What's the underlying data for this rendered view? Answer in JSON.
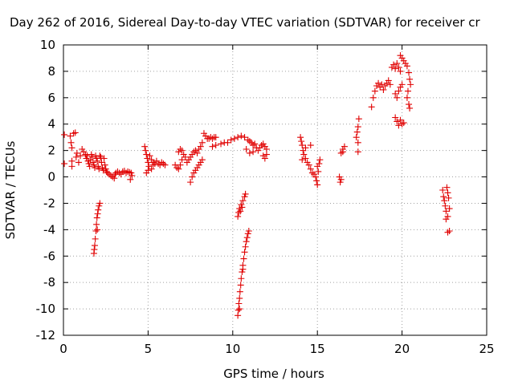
{
  "chart_data": {
    "type": "scatter",
    "title": "Day 262 of 2016, Sidereal Day-to-day VTEC variation (SDTVAR) for receiver cr",
    "xlabel": "GPS time / hours",
    "ylabel": "SDTVAR / TECUs",
    "xlim": [
      0,
      25
    ],
    "ylim": [
      -12,
      10
    ],
    "xticks": [
      "0",
      "5",
      "10",
      "15",
      "20",
      "25"
    ],
    "yticks": [
      "-12",
      "-10",
      "-8",
      "-6",
      "-4",
      "-2",
      "0",
      "2",
      "4",
      "6",
      "8",
      "10"
    ],
    "grid": true,
    "marker": "plus",
    "color": "#e00000",
    "series": [
      {
        "values": [
          [
            0.05,
            3.2
          ],
          [
            0.05,
            1.0
          ],
          [
            0.4,
            3.1
          ],
          [
            0.45,
            2.6
          ],
          [
            0.5,
            2.2
          ],
          [
            0.5,
            1.2
          ],
          [
            0.5,
            0.8
          ],
          [
            0.6,
            3.3
          ],
          [
            0.7,
            3.35
          ],
          [
            0.75,
            1.5
          ],
          [
            0.8,
            1.8
          ],
          [
            0.9,
            1.1
          ],
          [
            1.0,
            1.6
          ],
          [
            1.1,
            2.1
          ],
          [
            1.2,
            1.9
          ],
          [
            1.3,
            1.7
          ],
          [
            1.35,
            1.4
          ],
          [
            1.4,
            1.6
          ],
          [
            1.45,
            1.2
          ],
          [
            1.5,
            1.0
          ],
          [
            1.55,
            0.8
          ],
          [
            1.6,
            1.3
          ],
          [
            1.65,
            1.7
          ],
          [
            1.7,
            1.5
          ],
          [
            1.75,
            1.1
          ],
          [
            1.8,
            0.9
          ],
          [
            1.85,
            0.7
          ],
          [
            1.9,
            1.6
          ],
          [
            1.95,
            1.4
          ],
          [
            2.0,
            1.2
          ],
          [
            2.05,
            0.8
          ],
          [
            2.1,
            0.6
          ],
          [
            2.15,
            1.6
          ],
          [
            2.2,
            1.5
          ],
          [
            2.25,
            1.1
          ],
          [
            2.3,
            0.7
          ],
          [
            2.35,
            0.5
          ],
          [
            2.4,
            1.4
          ],
          [
            2.45,
            0.9
          ],
          [
            2.5,
            0.6
          ],
          [
            2.55,
            0.4
          ],
          [
            2.6,
            0.3
          ],
          [
            2.7,
            0.2
          ],
          [
            2.8,
            0.1
          ],
          [
            2.9,
            0.0
          ],
          [
            3.0,
            -0.1
          ],
          [
            3.05,
            0.2
          ],
          [
            3.1,
            0.3
          ],
          [
            3.2,
            0.4
          ],
          [
            3.3,
            0.3
          ],
          [
            3.4,
            0.2
          ],
          [
            3.5,
            0.4
          ],
          [
            3.6,
            0.45
          ],
          [
            3.7,
            0.3
          ],
          [
            3.8,
            0.4
          ],
          [
            3.9,
            0.35
          ],
          [
            4.0,
            0.3
          ],
          [
            3.95,
            -0.2
          ],
          [
            4.05,
            0.1
          ],
          [
            1.8,
            -5.8
          ],
          [
            1.82,
            -5.5
          ],
          [
            1.85,
            -5.2
          ],
          [
            1.88,
            -4.7
          ],
          [
            1.92,
            -4.1
          ],
          [
            1.95,
            -3.6
          ],
          [
            1.98,
            -3.1
          ],
          [
            2.02,
            -2.8
          ],
          [
            2.05,
            -2.5
          ],
          [
            2.1,
            -2.2
          ],
          [
            2.15,
            -2.0
          ],
          [
            2.0,
            -4.0
          ],
          [
            4.8,
            2.3
          ],
          [
            4.85,
            2.0
          ],
          [
            4.9,
            1.7
          ],
          [
            4.95,
            1.4
          ],
          [
            5.0,
            1.1
          ],
          [
            5.05,
            0.8
          ],
          [
            5.0,
            0.5
          ],
          [
            4.9,
            0.3
          ],
          [
            5.1,
            1.6
          ],
          [
            5.2,
            1.3
          ],
          [
            5.3,
            1.1
          ],
          [
            5.4,
            1.0
          ],
          [
            5.5,
            1.2
          ],
          [
            5.6,
            1.0
          ],
          [
            5.7,
            0.9
          ],
          [
            5.8,
            1.1
          ],
          [
            5.9,
            1.0
          ],
          [
            6.0,
            0.9
          ],
          [
            5.2,
            0.6
          ],
          [
            5.3,
            0.9
          ],
          [
            6.6,
            0.9
          ],
          [
            6.7,
            0.7
          ],
          [
            6.8,
            0.6
          ],
          [
            6.9,
            0.9
          ],
          [
            7.0,
            1.3
          ],
          [
            7.1,
            1.7
          ],
          [
            7.2,
            1.5
          ],
          [
            7.3,
            1.1
          ],
          [
            7.4,
            1.3
          ],
          [
            7.5,
            1.5
          ],
          [
            7.6,
            1.7
          ],
          [
            7.7,
            1.9
          ],
          [
            7.8,
            2.0
          ],
          [
            7.9,
            1.8
          ],
          [
            8.0,
            2.1
          ],
          [
            8.1,
            2.3
          ],
          [
            8.2,
            2.6
          ],
          [
            6.8,
            1.9
          ],
          [
            6.9,
            2.1
          ],
          [
            7.0,
            2.0
          ],
          [
            7.6,
            0.0
          ],
          [
            7.7,
            0.3
          ],
          [
            7.8,
            0.5
          ],
          [
            7.9,
            0.7
          ],
          [
            8.0,
            0.9
          ],
          [
            8.1,
            1.1
          ],
          [
            8.2,
            1.3
          ],
          [
            7.5,
            -0.4
          ],
          [
            8.3,
            3.3
          ],
          [
            8.4,
            3.1
          ],
          [
            8.5,
            2.9
          ],
          [
            8.6,
            2.9
          ],
          [
            8.7,
            3.0
          ],
          [
            8.8,
            2.9
          ],
          [
            8.9,
            3.0
          ],
          [
            9.0,
            3.0
          ],
          [
            8.8,
            2.3
          ],
          [
            9.0,
            2.4
          ],
          [
            9.3,
            2.5
          ],
          [
            9.5,
            2.6
          ],
          [
            9.7,
            2.6
          ],
          [
            9.9,
            2.8
          ],
          [
            10.1,
            2.9
          ],
          [
            10.3,
            3.0
          ],
          [
            10.5,
            3.1
          ],
          [
            10.7,
            3.0
          ],
          [
            10.9,
            2.8
          ],
          [
            11.0,
            2.7
          ],
          [
            11.1,
            2.6
          ],
          [
            11.2,
            2.4
          ],
          [
            11.3,
            2.5
          ],
          [
            11.4,
            2.2
          ],
          [
            11.5,
            2.0
          ],
          [
            11.6,
            2.2
          ],
          [
            11.7,
            2.4
          ],
          [
            11.8,
            2.5
          ],
          [
            11.9,
            2.3
          ],
          [
            12.0,
            2.1
          ],
          [
            11.8,
            1.6
          ],
          [
            11.9,
            1.4
          ],
          [
            12.0,
            1.7
          ],
          [
            11.0,
            1.8
          ],
          [
            11.2,
            1.9
          ],
          [
            10.8,
            2.1
          ],
          [
            10.3,
            -3.0
          ],
          [
            10.35,
            -2.7
          ],
          [
            10.4,
            -2.4
          ],
          [
            10.5,
            -2.1
          ],
          [
            10.6,
            -1.8
          ],
          [
            10.7,
            -1.5
          ],
          [
            10.75,
            -1.3
          ],
          [
            10.45,
            -2.6
          ],
          [
            10.55,
            -2.3
          ],
          [
            10.3,
            -10.5
          ],
          [
            10.33,
            -10.1
          ],
          [
            10.36,
            -9.6
          ],
          [
            10.4,
            -9.2
          ],
          [
            10.43,
            -8.7
          ],
          [
            10.47,
            -8.2
          ],
          [
            10.5,
            -7.7
          ],
          [
            10.55,
            -7.2
          ],
          [
            10.6,
            -6.7
          ],
          [
            10.65,
            -6.2
          ],
          [
            10.7,
            -5.7
          ],
          [
            10.75,
            -5.3
          ],
          [
            10.8,
            -4.9
          ],
          [
            10.85,
            -4.6
          ],
          [
            10.9,
            -4.3
          ],
          [
            10.95,
            -4.1
          ],
          [
            10.4,
            -10.0
          ],
          [
            10.6,
            -7.0
          ],
          [
            14.0,
            3.0
          ],
          [
            14.05,
            2.7
          ],
          [
            14.1,
            2.4
          ],
          [
            14.15,
            2.0
          ],
          [
            14.2,
            1.7
          ],
          [
            14.3,
            1.4
          ],
          [
            14.4,
            1.1
          ],
          [
            14.5,
            0.9
          ],
          [
            14.6,
            0.6
          ],
          [
            14.7,
            0.3
          ],
          [
            14.8,
            0.2
          ],
          [
            14.9,
            0.0
          ],
          [
            14.95,
            -0.3
          ],
          [
            15.0,
            -0.6
          ],
          [
            15.05,
            0.4
          ],
          [
            15.1,
            1.0
          ],
          [
            15.15,
            1.3
          ],
          [
            15.0,
            0.8
          ],
          [
            14.6,
            2.4
          ],
          [
            14.3,
            2.2
          ],
          [
            14.1,
            1.3
          ],
          [
            16.3,
            0.0
          ],
          [
            16.4,
            -0.2
          ],
          [
            16.35,
            -0.4
          ],
          [
            16.4,
            1.8
          ],
          [
            16.5,
            2.1
          ],
          [
            16.6,
            2.3
          ],
          [
            16.5,
            1.9
          ],
          [
            17.3,
            3.0
          ],
          [
            17.35,
            3.4
          ],
          [
            17.4,
            3.8
          ],
          [
            17.45,
            4.4
          ],
          [
            17.4,
            2.6
          ],
          [
            17.4,
            1.9
          ],
          [
            18.2,
            5.3
          ],
          [
            18.3,
            6.0
          ],
          [
            18.4,
            6.5
          ],
          [
            18.5,
            6.9
          ],
          [
            18.6,
            7.1
          ],
          [
            18.7,
            6.8
          ],
          [
            18.8,
            7.0
          ],
          [
            18.9,
            6.6
          ],
          [
            19.0,
            6.9
          ],
          [
            19.1,
            7.1
          ],
          [
            19.2,
            7.3
          ],
          [
            19.3,
            7.0
          ],
          [
            19.4,
            8.3
          ],
          [
            19.5,
            8.5
          ],
          [
            19.6,
            8.2
          ],
          [
            19.7,
            8.6
          ],
          [
            19.8,
            8.3
          ],
          [
            19.9,
            8.0
          ],
          [
            19.6,
            6.3
          ],
          [
            19.7,
            6.0
          ],
          [
            19.8,
            6.5
          ],
          [
            19.9,
            6.8
          ],
          [
            20.0,
            7.0
          ],
          [
            19.6,
            4.5
          ],
          [
            19.7,
            4.2
          ],
          [
            19.8,
            3.9
          ],
          [
            19.9,
            4.3
          ],
          [
            20.0,
            4.0
          ],
          [
            20.1,
            4.1
          ],
          [
            19.9,
            9.2
          ],
          [
            20.0,
            9.0
          ],
          [
            20.1,
            8.8
          ],
          [
            20.2,
            8.6
          ],
          [
            20.3,
            8.4
          ],
          [
            20.4,
            7.9
          ],
          [
            20.45,
            7.4
          ],
          [
            20.5,
            7.0
          ],
          [
            20.35,
            6.5
          ],
          [
            20.3,
            6.0
          ],
          [
            20.4,
            5.5
          ],
          [
            20.45,
            5.2
          ],
          [
            22.4,
            -1.0
          ],
          [
            22.45,
            -1.5
          ],
          [
            22.5,
            -1.8
          ],
          [
            22.55,
            -2.2
          ],
          [
            22.6,
            -2.6
          ],
          [
            22.65,
            -0.8
          ],
          [
            22.7,
            -1.2
          ],
          [
            22.75,
            -1.6
          ],
          [
            22.8,
            -2.4
          ],
          [
            22.7,
            -3.0
          ],
          [
            22.6,
            -3.2
          ],
          [
            22.7,
            -4.2
          ],
          [
            22.8,
            -4.1
          ]
        ]
      }
    ]
  }
}
